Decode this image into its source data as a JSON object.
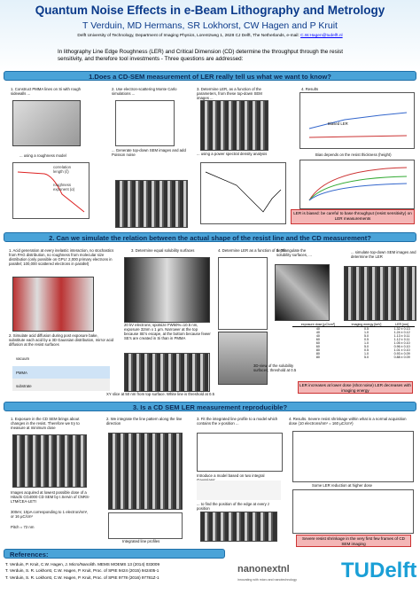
{
  "header": {
    "title": "Quantum Noise Effects in e-Beam Lithography and Metrology",
    "authors": "T Verduin, MD Hermans, SR Lokhorst, CW Hagen and P Kruit",
    "affiliation": "Delft University of Technology, Department of Imaging Physics, Lorentzweg 1, 2628 CJ Delft, The Netherlands, e-mail:",
    "email": "C.W.Hagen@tudelft.nl"
  },
  "intro": "In lithography Line Edge Roughness (LER) and Critical Dimension (CD) determine the throughput through the resist sensitivity, and therefore tool investments  -  Three questions are addressed:",
  "section1": {
    "heading": "1.Does a CD-SEM measurement of LER really tell us what we want to know?",
    "step1": "1. Construct PMMA lines on Si with rough sidewalls ...",
    "step1b": "... using a roughness model",
    "corr": "correlation length (ξ)",
    "rough": "roughness exponent (α)",
    "step2": "2. Use electron-scattering Monte Carlo simulations ...",
    "step2b": "... Generate top-down SEM images and add Poisson noise",
    "step3": "3. Determine LER, as a function of the parameters, from these top-down SEM images ...",
    "step3b": "... using a power spectral density analysis",
    "step4": "4. Results",
    "biased": "Biased LER",
    "bias": "Bias depends on the resist thickness (height)",
    "callout": "LER is biased: be careful to base throughput (resist sensitivity) on LER measurements"
  },
  "section2": {
    "heading": "2. Can we simulate the relation between the actual shape of the resist line and the CD measurement?",
    "step1": "1. Acid generation at every inelastic interaction, no stochastics from PAG distribution, no roughness from molecular size distribution (only possible on GPU: 2,000 primary electrons in parallel; 100,000 scattered electrons in parallel)",
    "step2": "2. Simulate acid diffusion during post exposure bake, substitute each acid by a 3D Gaussian distribution, mirror acid diffusion at the resist surfaces",
    "vacuum": "vacuum",
    "pmma": "PMMA",
    "substrate": "substrate",
    "step3": "3. Determine equal solubility surfaces",
    "step4": "4. Determine LER as a function of depth",
    "step5": "5. Triangulate the solubility surfaces, ...",
    "step6": "... simulate top-down SEM images and determine the LER",
    "conditions": "20 kV electrons; spotsize FW50%=10.5 nm, exposure 32nm x 1 µm. Narrower at the top because SE's escape, at the bottom because fewer SE's are created in Si than in PMMA",
    "slice": "XY slice at 50 nm from top surface. White line is threshold at 0.5",
    "view3d": "3D-view of the solubility surfaces; threshold at 0.5",
    "table": {
      "header": [
        "exposure dose [µC/cm²]",
        "imaging energy [keV]",
        "LER [nm]"
      ],
      "rows": [
        [
          "40",
          "0.5",
          "1.32 ± 0.13"
        ],
        [
          "40",
          "1.0",
          "1.24 ± 0.12"
        ],
        [
          "40",
          "5.0",
          "1.13 ± 0.11"
        ],
        [
          "60",
          "0.5",
          "1.12 ± 0.11"
        ],
        [
          "60",
          "1.0",
          "1.05 ± 0.10"
        ],
        [
          "60",
          "5.0",
          "0.96 ± 0.10"
        ],
        [
          "80",
          "0.5",
          "1.01 ± 0.10"
        ],
        [
          "80",
          "1.0",
          "0.93 ± 0.09"
        ],
        [
          "80",
          "5.0",
          "0.88 ± 0.09"
        ]
      ]
    },
    "callout": "LER increases at lower dose (shot noise) LER decreases with imaging energy"
  },
  "section3": {
    "heading": "3. Is a CD SEM LER measurement reproducible?",
    "step1": "1. Exposure in the CD SEM brings about changes in the resist. Therefore we try to measure at minimum dose",
    "acq": "Images acquired at lowest possible dose of a Hitachi CG4000 CD SEM by I.Servin of CNRS-LTM/CEA-LETI",
    "dose": "300eV, 10pA corresponding to 1 electron/nm², or 16 µC/cm²",
    "pitch": "Pitch = 72 nm",
    "step2": "2. We integrate the line pattern along the line direction",
    "profiles": "Integrated line profiles",
    "step3": "3. Fit the integrated line profile to a model which contains the x-position ...",
    "model": "Introduce a model based on two integral Gaussians:",
    "step3b": "... to find the position of the edge at every z position",
    "step4": "4. Results. Severe resist shrinkage within what is a normal acquisition dose (10 electrons/nm² = 160 µC/cm²)",
    "reduction": "Some LER reduction at higher dose",
    "callout": "Severe resist shrinkage in the very first few frames of CD SEM imaging"
  },
  "references": {
    "heading": "References:",
    "items": [
      "T. Verduin, P. Kruit, C.W. Hagen, J. Micro/Nanolith. MEMS MOEMS 13 (2014) 033009",
      "T. Verduin, S. R. Lokhorst, C.W. Hagen, P. Kruit, Proc. of SPIE 9424 (2015) 942405-1",
      "T. Verduin, S. R. Lokhorst, C.W. Hagen, P. Kruit, Proc. of SPIE 9778 (2016) 97781Z-1"
    ]
  },
  "logos": {
    "nano": "nanonextnl",
    "nano_tag": "innovating with micro and nanotechnology",
    "tu": "TUDelft"
  }
}
